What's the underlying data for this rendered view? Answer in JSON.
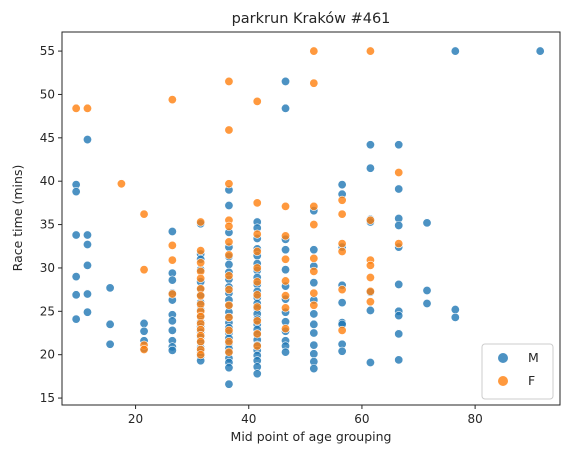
{
  "chart_data": {
    "type": "scatter",
    "title": "parkrun Kraków #461",
    "xlabel": "Mid point of age grouping",
    "ylabel": "Race time (mins)",
    "xlim": [
      7,
      95
    ],
    "ylim": [
      14.2,
      57.2
    ],
    "xticks": [
      20,
      40,
      60,
      80
    ],
    "yticks": [
      15,
      20,
      25,
      30,
      35,
      40,
      45,
      50,
      55
    ],
    "grid": false,
    "legend_position": "lower-right",
    "series": [
      {
        "name": "M",
        "color": "#1f77b4",
        "points": [
          [
            9.5,
            39.6
          ],
          [
            9.5,
            38.8
          ],
          [
            9.5,
            33.8
          ],
          [
            9.5,
            29.0
          ],
          [
            9.5,
            26.9
          ],
          [
            9.5,
            24.1
          ],
          [
            11.5,
            44.8
          ],
          [
            11.5,
            33.8
          ],
          [
            11.5,
            32.7
          ],
          [
            11.5,
            30.3
          ],
          [
            11.5,
            27.0
          ],
          [
            11.5,
            24.9
          ],
          [
            15.5,
            27.7
          ],
          [
            15.5,
            23.5
          ],
          [
            15.5,
            21.2
          ],
          [
            21.5,
            23.6
          ],
          [
            21.5,
            22.7
          ],
          [
            21.5,
            21.6
          ],
          [
            21.5,
            20.7
          ],
          [
            26.5,
            34.2
          ],
          [
            26.5,
            29.4
          ],
          [
            26.5,
            28.6
          ],
          [
            26.5,
            27.1
          ],
          [
            26.5,
            26.3
          ],
          [
            26.5,
            24.6
          ],
          [
            26.5,
            23.9
          ],
          [
            26.5,
            22.8
          ],
          [
            26.5,
            21.6
          ],
          [
            26.5,
            20.9
          ],
          [
            26.5,
            20.5
          ],
          [
            31.5,
            35.1
          ],
          [
            31.5,
            31.6
          ],
          [
            31.5,
            31.0
          ],
          [
            31.5,
            29.8
          ],
          [
            31.5,
            28.4
          ],
          [
            31.5,
            27.5
          ],
          [
            31.5,
            26.9
          ],
          [
            31.5,
            26.0
          ],
          [
            31.5,
            25.2
          ],
          [
            31.5,
            24.5
          ],
          [
            31.5,
            23.8
          ],
          [
            31.5,
            23.2
          ],
          [
            31.5,
            22.6
          ],
          [
            31.5,
            22.0
          ],
          [
            31.5,
            21.4
          ],
          [
            31.5,
            20.8
          ],
          [
            31.5,
            20.3
          ],
          [
            31.5,
            19.8
          ],
          [
            31.5,
            19.3
          ],
          [
            36.5,
            39.0
          ],
          [
            36.5,
            37.2
          ],
          [
            36.5,
            34.1
          ],
          [
            36.5,
            32.4
          ],
          [
            36.5,
            31.3
          ],
          [
            36.5,
            30.4
          ],
          [
            36.5,
            29.5
          ],
          [
            36.5,
            28.7
          ],
          [
            36.5,
            27.8
          ],
          [
            36.5,
            27.1
          ],
          [
            36.5,
            26.3
          ],
          [
            36.5,
            25.6
          ],
          [
            36.5,
            24.9
          ],
          [
            36.5,
            24.3
          ],
          [
            36.5,
            23.7
          ],
          [
            36.5,
            23.1
          ],
          [
            36.5,
            22.5
          ],
          [
            36.5,
            21.9
          ],
          [
            36.5,
            21.3
          ],
          [
            36.5,
            20.7
          ],
          [
            36.5,
            20.2
          ],
          [
            36.5,
            19.6
          ],
          [
            36.5,
            19.1
          ],
          [
            36.5,
            18.5
          ],
          [
            36.5,
            16.6
          ],
          [
            41.5,
            35.3
          ],
          [
            41.5,
            34.6
          ],
          [
            41.5,
            33.4
          ],
          [
            41.5,
            32.2
          ],
          [
            41.5,
            31.4
          ],
          [
            41.5,
            30.5
          ],
          [
            41.5,
            29.7
          ],
          [
            41.5,
            28.9
          ],
          [
            41.5,
            28.1
          ],
          [
            41.5,
            27.3
          ],
          [
            41.5,
            26.6
          ],
          [
            41.5,
            25.9
          ],
          [
            41.5,
            25.3
          ],
          [
            41.5,
            24.7
          ],
          [
            41.5,
            24.1
          ],
          [
            41.5,
            23.5
          ],
          [
            41.5,
            22.9
          ],
          [
            41.5,
            22.3
          ],
          [
            41.5,
            21.7
          ],
          [
            41.5,
            21.1
          ],
          [
            41.5,
            20.5
          ],
          [
            41.5,
            19.9
          ],
          [
            41.5,
            19.3
          ],
          [
            41.5,
            18.6
          ],
          [
            41.5,
            17.8
          ],
          [
            46.5,
            51.5
          ],
          [
            46.5,
            48.4
          ],
          [
            46.5,
            33.3
          ],
          [
            46.5,
            32.1
          ],
          [
            46.5,
            29.8
          ],
          [
            46.5,
            27.9
          ],
          [
            46.5,
            26.4
          ],
          [
            46.5,
            24.9
          ],
          [
            46.5,
            23.8
          ],
          [
            46.5,
            22.7
          ],
          [
            46.5,
            21.6
          ],
          [
            46.5,
            21.0
          ],
          [
            46.5,
            20.3
          ],
          [
            51.5,
            36.6
          ],
          [
            51.5,
            32.1
          ],
          [
            51.5,
            30.2
          ],
          [
            51.5,
            28.3
          ],
          [
            51.5,
            26.3
          ],
          [
            51.5,
            24.7
          ],
          [
            51.5,
            23.5
          ],
          [
            51.5,
            22.5
          ],
          [
            51.5,
            21.1
          ],
          [
            51.5,
            20.1
          ],
          [
            51.5,
            19.2
          ],
          [
            51.5,
            18.4
          ],
          [
            56.5,
            39.6
          ],
          [
            56.5,
            38.5
          ],
          [
            56.5,
            32.4
          ],
          [
            56.5,
            28.0
          ],
          [
            56.5,
            26.0
          ],
          [
            56.5,
            23.7
          ],
          [
            56.5,
            23.5
          ],
          [
            56.5,
            21.2
          ],
          [
            56.5,
            20.4
          ],
          [
            61.5,
            44.2
          ],
          [
            61.5,
            41.5
          ],
          [
            61.5,
            35.6
          ],
          [
            61.5,
            35.3
          ],
          [
            61.5,
            27.2
          ],
          [
            61.5,
            25.1
          ],
          [
            61.5,
            19.1
          ],
          [
            66.5,
            44.2
          ],
          [
            66.5,
            39.1
          ],
          [
            66.5,
            35.7
          ],
          [
            66.5,
            34.9
          ],
          [
            66.5,
            32.4
          ],
          [
            66.5,
            28.1
          ],
          [
            66.5,
            25.0
          ],
          [
            66.5,
            24.5
          ],
          [
            66.5,
            22.4
          ],
          [
            66.5,
            19.4
          ],
          [
            71.5,
            35.2
          ],
          [
            71.5,
            27.4
          ],
          [
            71.5,
            25.9
          ],
          [
            76.5,
            55.0
          ],
          [
            76.5,
            25.2
          ],
          [
            76.5,
            24.3
          ],
          [
            91.5,
            55.0
          ]
        ]
      },
      {
        "name": "F",
        "color": "#ff7f0e",
        "points": [
          [
            9.5,
            48.4
          ],
          [
            11.5,
            48.4
          ],
          [
            17.5,
            39.7
          ],
          [
            21.5,
            36.2
          ],
          [
            21.5,
            29.8
          ],
          [
            21.5,
            21.1
          ],
          [
            21.5,
            20.6
          ],
          [
            26.5,
            49.4
          ],
          [
            26.5,
            32.6
          ],
          [
            26.5,
            30.9
          ],
          [
            26.5,
            27.0
          ],
          [
            31.5,
            35.3
          ],
          [
            31.5,
            32.0
          ],
          [
            31.5,
            30.6
          ],
          [
            31.5,
            29.6
          ],
          [
            31.5,
            28.8
          ],
          [
            31.5,
            27.6
          ],
          [
            31.5,
            26.8
          ],
          [
            31.5,
            25.8
          ],
          [
            31.5,
            25.0
          ],
          [
            31.5,
            24.4
          ],
          [
            31.5,
            23.6
          ],
          [
            31.5,
            22.9
          ],
          [
            31.5,
            22.2
          ],
          [
            31.5,
            21.5
          ],
          [
            31.5,
            20.6
          ],
          [
            31.5,
            20.0
          ],
          [
            36.5,
            51.5
          ],
          [
            36.5,
            45.9
          ],
          [
            36.5,
            39.7
          ],
          [
            36.5,
            35.5
          ],
          [
            36.5,
            34.8
          ],
          [
            36.5,
            33.0
          ],
          [
            36.5,
            31.5
          ],
          [
            36.5,
            29.1
          ],
          [
            36.5,
            27.5
          ],
          [
            36.5,
            25.7
          ],
          [
            36.5,
            24.3
          ],
          [
            36.5,
            22.8
          ],
          [
            36.5,
            21.5
          ],
          [
            36.5,
            20.3
          ],
          [
            41.5,
            49.2
          ],
          [
            41.5,
            37.5
          ],
          [
            41.5,
            33.9
          ],
          [
            41.5,
            31.9
          ],
          [
            41.5,
            30.0
          ],
          [
            41.5,
            28.4
          ],
          [
            41.5,
            26.9
          ],
          [
            41.5,
            25.5
          ],
          [
            41.5,
            23.9
          ],
          [
            41.5,
            22.4
          ],
          [
            41.5,
            21.0
          ],
          [
            46.5,
            37.1
          ],
          [
            46.5,
            33.7
          ],
          [
            46.5,
            31.0
          ],
          [
            46.5,
            28.5
          ],
          [
            46.5,
            26.8
          ],
          [
            46.5,
            25.4
          ],
          [
            46.5,
            23.0
          ],
          [
            51.5,
            55.0
          ],
          [
            51.5,
            51.3
          ],
          [
            51.5,
            37.1
          ],
          [
            51.5,
            35.0
          ],
          [
            51.5,
            31.1
          ],
          [
            51.5,
            29.6
          ],
          [
            51.5,
            27.1
          ],
          [
            51.5,
            25.7
          ],
          [
            56.5,
            37.8
          ],
          [
            56.5,
            36.2
          ],
          [
            56.5,
            32.8
          ],
          [
            56.5,
            31.9
          ],
          [
            56.5,
            27.5
          ],
          [
            56.5,
            22.8
          ],
          [
            61.5,
            55.0
          ],
          [
            61.5,
            35.5
          ],
          [
            61.5,
            30.9
          ],
          [
            61.5,
            30.3
          ],
          [
            61.5,
            28.9
          ],
          [
            61.5,
            27.3
          ],
          [
            61.5,
            26.1
          ],
          [
            66.5,
            41.0
          ],
          [
            66.5,
            32.8
          ]
        ]
      }
    ]
  }
}
